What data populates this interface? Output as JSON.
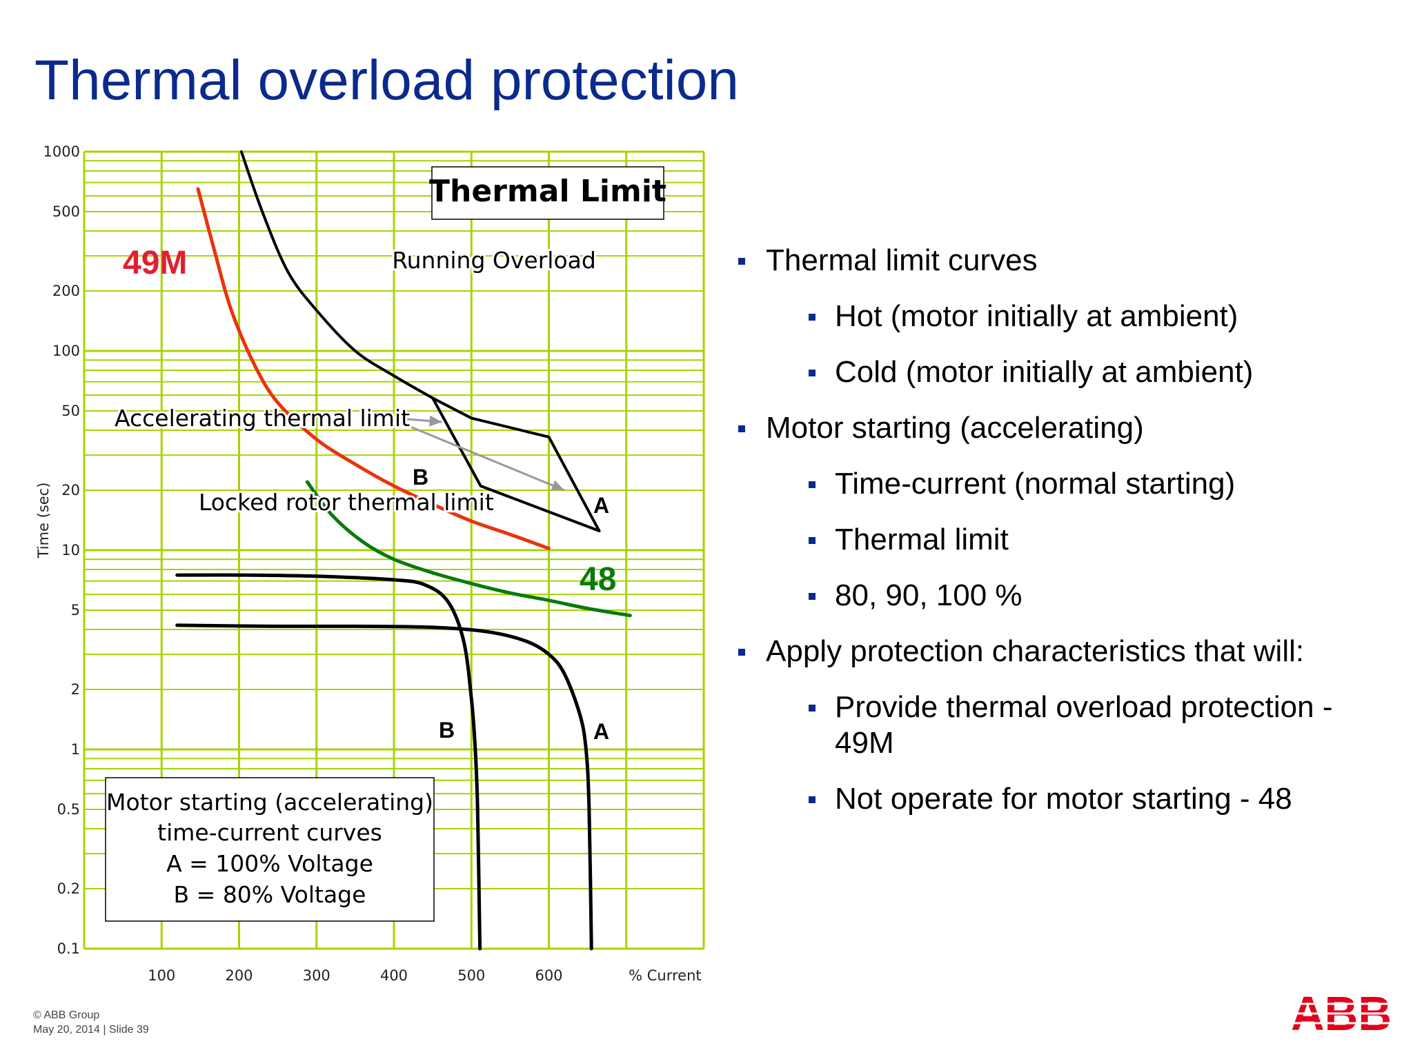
{
  "slide": {
    "title": "Thermal overload protection",
    "footer_line1": "© ABB Group",
    "footer_line2": "May 20, 2014 | Slide 39",
    "logo_text": "ABB",
    "colors": {
      "title": "#0a2a8c",
      "bullet": "#0a2a8c",
      "logo": "#e2001a"
    }
  },
  "bullets": [
    {
      "level": 1,
      "text": "Thermal limit curves"
    },
    {
      "level": 2,
      "text": "Hot (motor initially at ambient)"
    },
    {
      "level": 2,
      "text": "Cold (motor initially at ambient)"
    },
    {
      "level": 1,
      "text": "Motor starting (accelerating)"
    },
    {
      "level": 2,
      "text": "Time-current (normal starting)"
    },
    {
      "level": 2,
      "text": "Thermal limit"
    },
    {
      "level": 2,
      "text": "80, 90, 100 %"
    },
    {
      "level": 1,
      "text": "Apply protection characteristics that will:"
    },
    {
      "level": 2,
      "text": "Provide thermal overload protection - 49M"
    },
    {
      "level": 2,
      "text": "Not operate for motor starting - 48"
    }
  ],
  "chart_data": {
    "type": "line",
    "y_scale": "log",
    "grid": true,
    "colors": {
      "grid": "#a6d400",
      "curve": "#000000",
      "49M": "#e8340c",
      "48": "#0a7a0a",
      "label_49M": "#e02030",
      "arrow": "#999999"
    },
    "xlabel": "% Current",
    "ylabel": "Time (sec)",
    "xlim": [
      0,
      800
    ],
    "ylim": [
      0.1,
      1000
    ],
    "x_ticks": [
      100,
      200,
      300,
      400,
      500,
      600
    ],
    "x_tick_labels": [
      "100",
      "200",
      "300",
      "400",
      "500",
      "600"
    ],
    "y_ticks": [
      1000,
      500,
      200,
      100,
      50,
      20,
      10,
      5,
      2,
      1,
      0.5,
      0.2,
      0.1
    ],
    "y_tick_labels": [
      "1000",
      "500",
      "200",
      "100",
      "50",
      "20",
      "10",
      "5",
      "2",
      "1",
      "0.5",
      "0.2",
      "0.1"
    ],
    "series": [
      {
        "key": "running_overload",
        "points": [
          [
            203,
            1000
          ],
          [
            230,
            500
          ],
          [
            263,
            250
          ],
          [
            300,
            160
          ],
          [
            350,
            100
          ],
          [
            400,
            75
          ],
          [
            450,
            58
          ]
        ]
      },
      {
        "key": "thermal_limit_A",
        "points": [
          [
            450,
            58
          ],
          [
            500,
            46
          ],
          [
            600,
            37
          ],
          [
            665,
            12.5
          ]
        ]
      },
      {
        "key": "thermal_limit_B",
        "points": [
          [
            450,
            58
          ],
          [
            512,
            21
          ],
          [
            665,
            12.5
          ]
        ]
      },
      {
        "key": "49M",
        "points": [
          [
            147,
            650
          ],
          [
            170,
            300
          ],
          [
            190,
            160
          ],
          [
            220,
            85
          ],
          [
            250,
            55
          ],
          [
            300,
            36
          ],
          [
            350,
            27
          ],
          [
            400,
            21
          ],
          [
            450,
            17
          ],
          [
            500,
            14
          ],
          [
            550,
            12
          ],
          [
            600,
            10.2
          ]
        ]
      },
      {
        "key": "48",
        "points": [
          [
            288,
            22
          ],
          [
            320,
            15
          ],
          [
            360,
            11
          ],
          [
            400,
            9
          ],
          [
            450,
            7.7
          ],
          [
            500,
            6.8
          ],
          [
            550,
            6.1
          ],
          [
            600,
            5.6
          ],
          [
            650,
            5.1
          ],
          [
            705,
            4.7
          ]
        ]
      },
      {
        "key": "start_B",
        "points": [
          [
            120,
            7.5
          ],
          [
            200,
            7.5
          ],
          [
            300,
            7.4
          ],
          [
            400,
            7.1
          ],
          [
            440,
            6.7
          ],
          [
            470,
            5.5
          ],
          [
            490,
            3.5
          ],
          [
            500,
            1.8
          ],
          [
            505,
            1
          ],
          [
            508,
            0.5
          ],
          [
            511,
            0.1
          ]
        ]
      },
      {
        "key": "start_A",
        "points": [
          [
            120,
            4.2
          ],
          [
            250,
            4.15
          ],
          [
            350,
            4.15
          ],
          [
            450,
            4.1
          ],
          [
            520,
            3.9
          ],
          [
            570,
            3.5
          ],
          [
            600,
            3.0
          ],
          [
            620,
            2.4
          ],
          [
            640,
            1.5
          ],
          [
            648,
            1.0
          ],
          [
            652,
            0.5
          ],
          [
            655,
            0.1
          ]
        ]
      }
    ],
    "arrows": [
      {
        "from": [
          400,
          46
        ],
        "to": [
          462,
          44
        ]
      },
      {
        "from": [
          400,
          45
        ],
        "to": [
          620,
          20
        ]
      }
    ],
    "annotations": {
      "thermal_limit": "Thermal Limit",
      "running_overload": "Running Overload",
      "accelerating": "Accelerating thermal limit",
      "locked_rotor": "Locked rotor thermal limit",
      "label_49M": "49M",
      "label_48": "48",
      "thermal_A": "A",
      "thermal_B": "B",
      "start_A": "A",
      "start_B": "B"
    },
    "note_box": [
      "Motor starting (accelerating)",
      "time-current  curves",
      "A = 100% Voltage",
      "B = 80% Voltage"
    ]
  }
}
